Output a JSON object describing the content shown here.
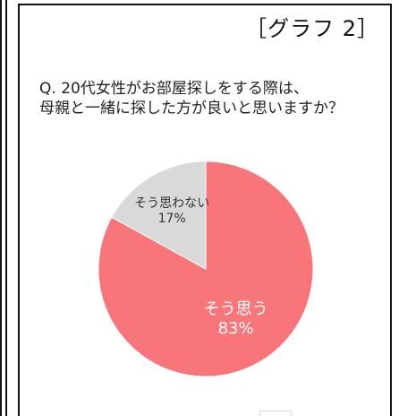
{
  "graph_tag": "［グラフ 2］",
  "question": {
    "line1": "Q. 20代女性がお部屋探しをする際は、",
    "line2": "母親と一緒に探した方が良いと思いますか？"
  },
  "colors": {
    "agree": "#f8767a",
    "disagree": "#d9d9d9",
    "agree_text": "#ffffff",
    "disagree_text": "#333333"
  },
  "chart_data": {
    "type": "pie",
    "title": "Q. 20代女性がお部屋探しをする際は、母親と一緒に探した方が良いと思いますか？",
    "slices": [
      {
        "label": "そう思う",
        "value": 83,
        "display": "83%",
        "color": "#f8767a"
      },
      {
        "label": "そう思わない",
        "value": 17,
        "display": "17%",
        "color": "#d9d9d9"
      }
    ],
    "legend": "none"
  }
}
